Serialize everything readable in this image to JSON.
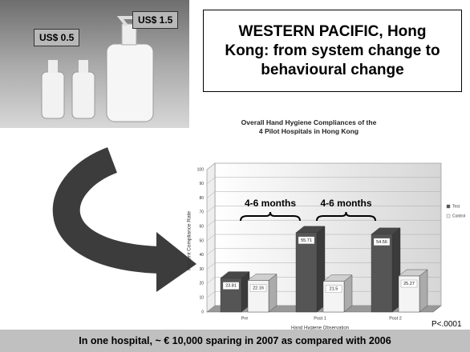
{
  "slide": {
    "heading": "WESTERN PACIFIC, Hong Kong: from system change to behavioural change",
    "price_small": "US$ 0.5",
    "price_large": "US$ 1.5",
    "footer": "In one hospital, ~ € 10,000 sparing in 2007 as compared with 2006"
  },
  "chart_data": {
    "type": "bar",
    "title": "Overall Hand Hygiene Compliances of the 4 Pilot Hospitals in Hong Kong",
    "x_label": "Hand Hygiene Observation",
    "y_label": "Percent Compliance Rate",
    "categories": [
      "Pre",
      "Post 1",
      "Post 2"
    ],
    "series": [
      {
        "name": "Test",
        "color": "#555555",
        "values": [
          23.81,
          55.71,
          54.56
        ]
      },
      {
        "name": "Control",
        "color": "#f4f4f4",
        "values": [
          22.16,
          21.5,
          25.27
        ]
      }
    ],
    "ylim": [
      0,
      100
    ],
    "yticks": [
      0,
      10,
      20,
      30,
      40,
      50,
      60,
      70,
      80,
      90,
      100
    ],
    "grid": true,
    "annotations": [
      "4-6 months",
      "4-6 months",
      "P<.0001"
    ]
  }
}
